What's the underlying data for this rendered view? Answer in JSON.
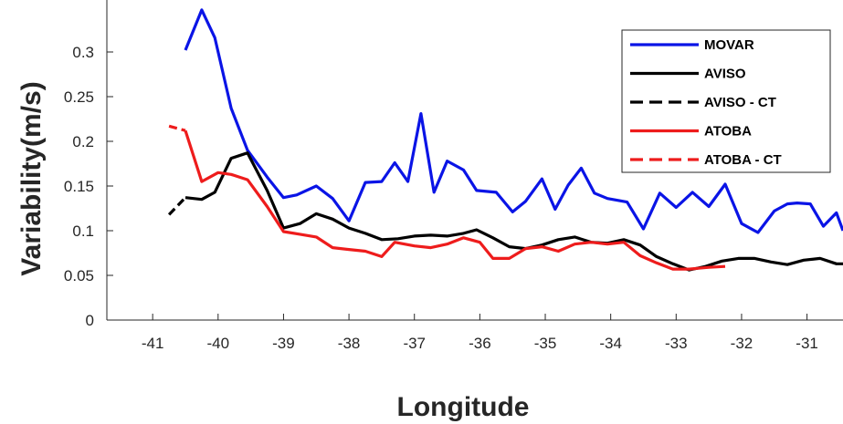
{
  "chart_data": {
    "type": "line",
    "title": "",
    "xlabel": "Longitude",
    "ylabel": "Variability(m/s)",
    "xlim": [
      -41.7,
      -30.45
    ],
    "ylim": [
      0,
      0.35
    ],
    "xticks": [
      -41,
      -40,
      -39,
      -38,
      -37,
      -36,
      -35,
      -34,
      -33,
      -32,
      -31
    ],
    "xtick_labels": [
      "-41",
      "-40",
      "-39",
      "-38",
      "-37",
      "-36",
      "-35",
      "-34",
      "-33",
      "-32",
      "-31"
    ],
    "yticks": [
      0,
      0.05,
      0.1,
      0.15,
      0.2,
      0.25,
      0.3
    ],
    "ytick_labels": [
      "0",
      "0.05",
      "0.1",
      "0.15",
      "0.2",
      "0.25",
      "0.3"
    ],
    "grid": false,
    "legend_position": "top-right",
    "series": [
      {
        "name": "MOVAR",
        "color": "#0a14e6",
        "dash": "solid",
        "x": [
          -40.5,
          -40.25,
          -40.05,
          -39.8,
          -39.55,
          -39.25,
          -39.0,
          -38.8,
          -38.5,
          -38.25,
          -38.0,
          -37.75,
          -37.5,
          -37.3,
          -37.1,
          -36.9,
          -36.7,
          -36.5,
          -36.25,
          -36.05,
          -35.75,
          -35.5,
          -35.3,
          -35.05,
          -34.85,
          -34.65,
          -34.45,
          -34.25,
          -34.05,
          -33.75,
          -33.5,
          -33.25,
          -33.0,
          -32.75,
          -32.5,
          -32.25,
          -32.0,
          -31.75,
          -31.5,
          -31.3,
          -31.15,
          -30.95,
          -30.75,
          -30.55,
          -30.45
        ],
        "y": [
          0.302,
          0.347,
          0.316,
          0.237,
          0.19,
          0.16,
          0.137,
          0.14,
          0.15,
          0.136,
          0.111,
          0.154,
          0.155,
          0.176,
          0.155,
          0.231,
          0.143,
          0.178,
          0.168,
          0.145,
          0.143,
          0.121,
          0.133,
          0.158,
          0.124,
          0.151,
          0.17,
          0.142,
          0.136,
          0.132,
          0.102,
          0.142,
          0.126,
          0.143,
          0.127,
          0.152,
          0.108,
          0.098,
          0.122,
          0.13,
          0.131,
          0.13,
          0.105,
          0.12,
          0.1
        ]
      },
      {
        "name": "AVISO",
        "color": "#000000",
        "dash": "solid",
        "x": [
          -40.5,
          -40.25,
          -40.05,
          -39.8,
          -39.55,
          -39.25,
          -39.0,
          -38.75,
          -38.5,
          -38.25,
          -38.0,
          -37.75,
          -37.5,
          -37.25,
          -37.0,
          -36.75,
          -36.5,
          -36.25,
          -36.05,
          -35.8,
          -35.55,
          -35.3,
          -35.05,
          -34.8,
          -34.55,
          -34.3,
          -34.05,
          -33.8,
          -33.55,
          -33.3,
          -33.05,
          -32.8,
          -32.55,
          -32.3,
          -32.05,
          -31.8,
          -31.55,
          -31.3,
          -31.05,
          -30.8,
          -30.55,
          -30.45
        ],
        "y": [
          0.137,
          0.135,
          0.143,
          0.181,
          0.187,
          0.145,
          0.103,
          0.108,
          0.119,
          0.113,
          0.103,
          0.097,
          0.09,
          0.091,
          0.094,
          0.095,
          0.094,
          0.097,
          0.101,
          0.092,
          0.082,
          0.08,
          0.084,
          0.09,
          0.093,
          0.087,
          0.086,
          0.09,
          0.084,
          0.071,
          0.063,
          0.056,
          0.06,
          0.066,
          0.069,
          0.069,
          0.065,
          0.062,
          0.067,
          0.069,
          0.063,
          0.063
        ]
      },
      {
        "name": "AVISO - CT",
        "color": "#000000",
        "dash": "dashed",
        "x": [
          -40.75,
          -40.5
        ],
        "y": [
          0.118,
          0.137
        ]
      },
      {
        "name": "ATOBA",
        "color": "#ee1c1c",
        "dash": "solid",
        "x": [
          -40.5,
          -40.25,
          -40.0,
          -39.8,
          -39.55,
          -39.25,
          -39.0,
          -38.75,
          -38.5,
          -38.25,
          -38.0,
          -37.75,
          -37.5,
          -37.3,
          -37.0,
          -36.75,
          -36.5,
          -36.25,
          -36.0,
          -35.8,
          -35.55,
          -35.3,
          -35.05,
          -34.8,
          -34.55,
          -34.3,
          -34.05,
          -33.8,
          -33.55,
          -33.3,
          -33.05,
          -32.8,
          -32.5,
          -32.25
        ],
        "y": [
          0.212,
          0.155,
          0.165,
          0.163,
          0.157,
          0.127,
          0.099,
          0.096,
          0.093,
          0.081,
          0.079,
          0.077,
          0.071,
          0.087,
          0.083,
          0.081,
          0.085,
          0.092,
          0.087,
          0.069,
          0.069,
          0.08,
          0.082,
          0.077,
          0.085,
          0.087,
          0.085,
          0.087,
          0.072,
          0.064,
          0.057,
          0.057,
          0.059,
          0.06
        ]
      },
      {
        "name": "ATOBA - CT",
        "color": "#ee1c1c",
        "dash": "dashed",
        "x": [
          -40.75,
          -40.5
        ],
        "y": [
          0.217,
          0.212
        ]
      }
    ]
  }
}
